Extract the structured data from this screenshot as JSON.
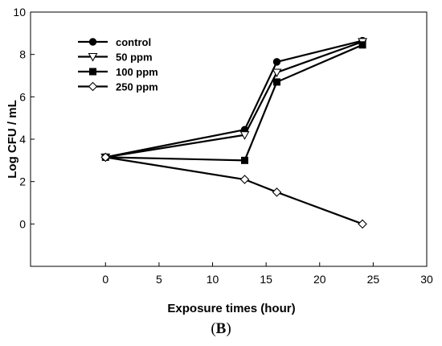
{
  "chart_data": {
    "type": "line",
    "title": "",
    "xlabel": "Exposure times (hour)",
    "ylabel": "Log CFU / mL",
    "xlim": [
      -7,
      30
    ],
    "ylim": [
      -2,
      10
    ],
    "xticks": [
      0,
      5,
      10,
      15,
      20,
      25,
      30
    ],
    "yticks": [
      0,
      2,
      4,
      6,
      8,
      10
    ],
    "grid": false,
    "legend_position": "top-left",
    "series": [
      {
        "name": "control",
        "marker": "filled-circle",
        "x": [
          0,
          13,
          16,
          24
        ],
        "y": [
          3.15,
          4.45,
          7.65,
          8.65
        ]
      },
      {
        "name": "50 ppm",
        "marker": "open-triangle-down",
        "x": [
          0,
          13,
          16,
          24
        ],
        "y": [
          3.15,
          4.2,
          7.15,
          8.6
        ]
      },
      {
        "name": "100 ppm",
        "marker": "filled-square",
        "x": [
          0,
          13,
          16,
          24
        ],
        "y": [
          3.15,
          3.0,
          6.7,
          8.45
        ]
      },
      {
        "name": "250 ppm",
        "marker": "open-diamond",
        "x": [
          0,
          13,
          16,
          24
        ],
        "y": [
          3.15,
          2.1,
          1.5,
          0.0
        ]
      }
    ]
  },
  "panel_label": {
    "open": "(",
    "letter": "B",
    "close": ")"
  }
}
